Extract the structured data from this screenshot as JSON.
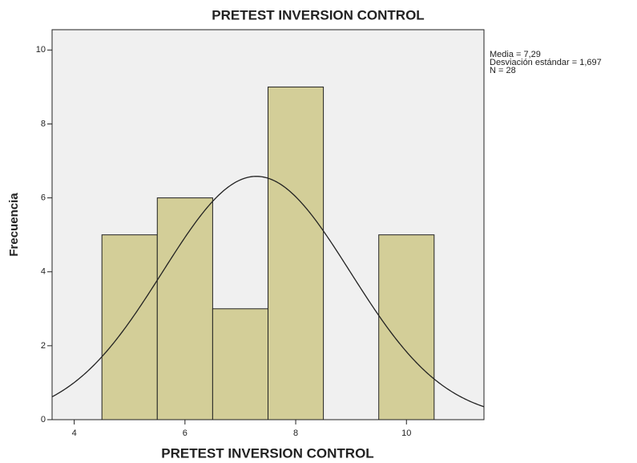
{
  "chart_data": {
    "type": "histogram",
    "title": "PRETEST INVERSION CONTROL",
    "xlabel": "PRETEST INVERSION CONTROL",
    "ylabel": "Frecuencia",
    "bins": [
      4.5,
      5.5,
      6.5,
      7.5,
      8.5,
      9.5,
      10.5
    ],
    "counts": [
      5,
      6,
      3,
      9,
      0,
      5
    ],
    "color": "#d3ce98",
    "xlim": [
      3.6,
      11.4
    ],
    "xticks": [
      4,
      6,
      8,
      10
    ],
    "ylim": [
      0,
      10.55
    ],
    "yticks": [
      0,
      2,
      4,
      6,
      8,
      10
    ],
    "stats": [
      {
        "value": 7.29,
        "label": "Media = 7,29"
      },
      {
        "value": 1.697,
        "label": "Desviación estándar = 1,697"
      },
      {
        "value": 28,
        "label": "N = 28"
      }
    ]
  }
}
